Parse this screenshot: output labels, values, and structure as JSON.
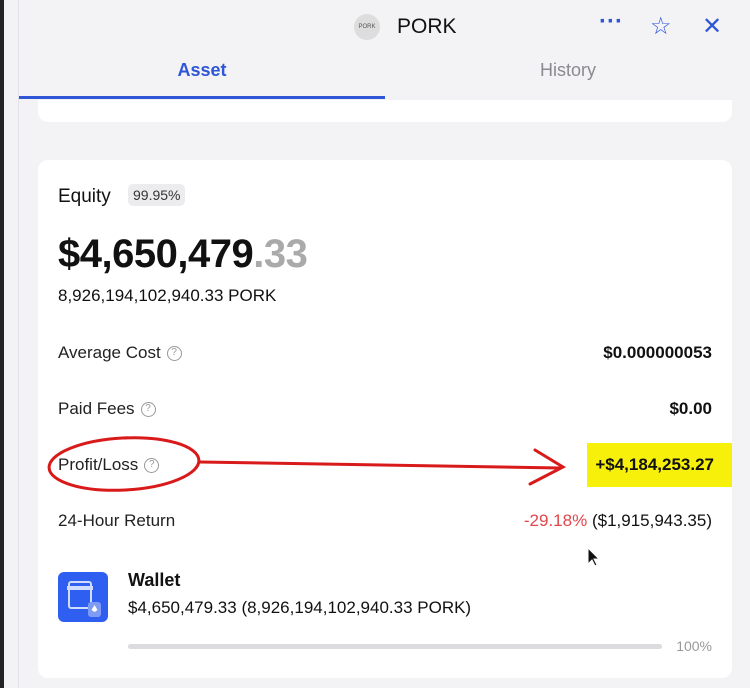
{
  "header": {
    "logo_text": "PORK",
    "title": "PORK",
    "icons": [
      "more-icon",
      "star-icon",
      "close-icon"
    ]
  },
  "tabs": [
    {
      "label": "Asset",
      "active": true
    },
    {
      "label": "History",
      "active": false
    }
  ],
  "equity": {
    "label": "Equity",
    "badge": "99.95%",
    "value_main": "$4,650,479",
    "value_decimal": ".33",
    "token_amount": "8,926,194,102,940.33 PORK"
  },
  "rows": [
    {
      "label": "Average Cost",
      "value": "$0.000000053"
    },
    {
      "label": "Paid Fees",
      "value": "$0.00"
    },
    {
      "label": "Profit/Loss",
      "value": "+$4,184,253.27"
    },
    {
      "label": "24-Hour Return",
      "value_pct": "-29.18%",
      "value_amt": "($1,915,943.35)"
    }
  ],
  "wallet": {
    "name": "Wallet",
    "value": "$4,650,479.33 (8,926,194,102,940.33 PORK)",
    "share_pct": "100%",
    "share": 100
  },
  "colors": {
    "accent": "#2f56d6",
    "negative": "#e0474c",
    "highlight": "#f7f00a",
    "annotation": "#d91a1a"
  }
}
